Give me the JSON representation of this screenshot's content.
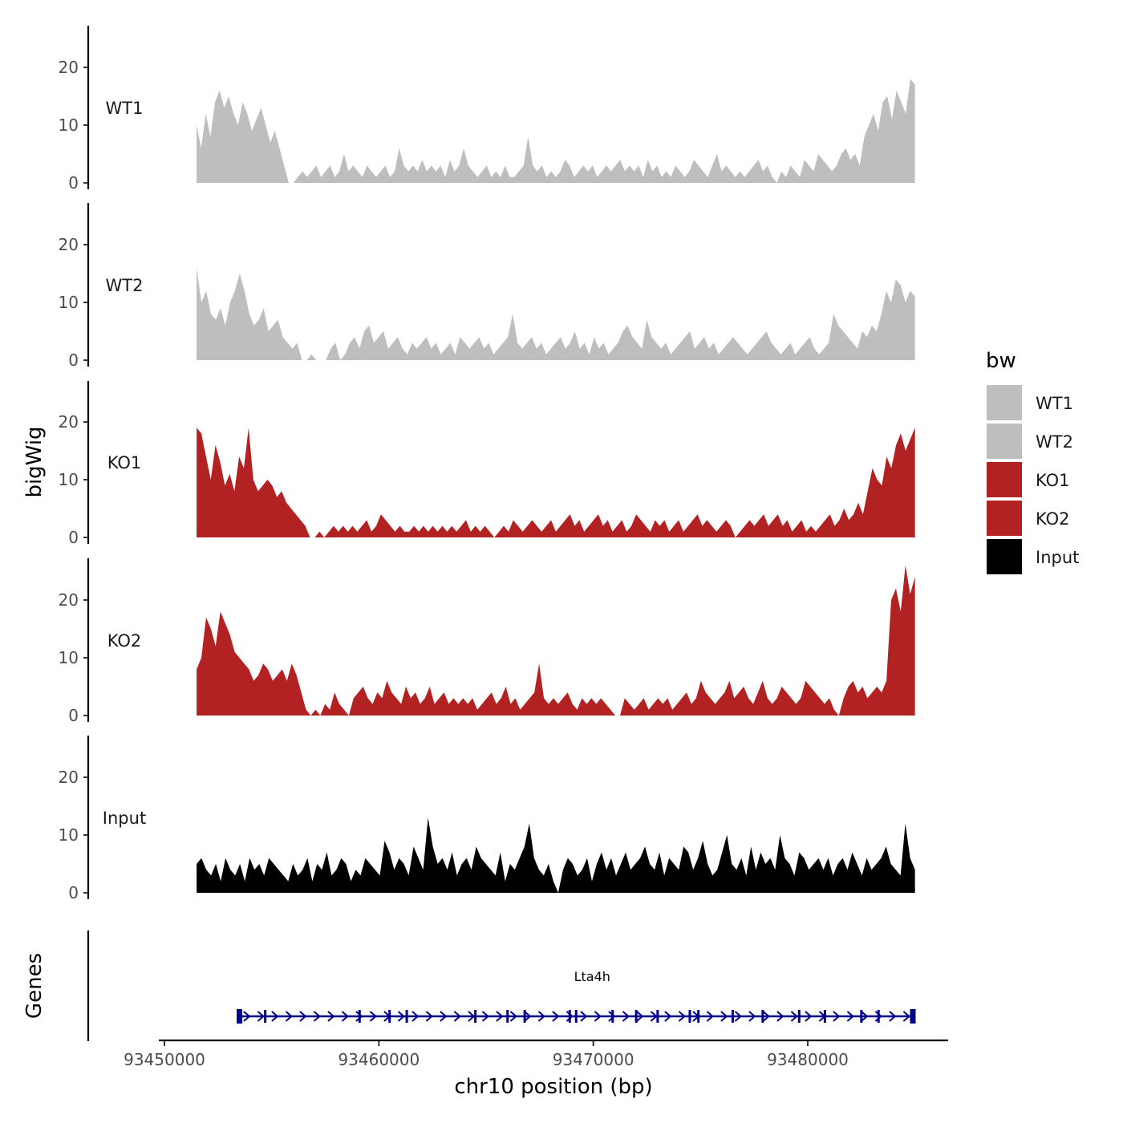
{
  "chart_data": {
    "type": "area",
    "title": "",
    "ylabel": "bigWig",
    "xlabel": "chr10 position (bp)",
    "genes_label": "Genes",
    "xlim": [
      93449800,
      93486600
    ],
    "x_ticks": [
      93450000,
      93460000,
      93470000,
      93480000
    ],
    "x_tick_labels": [
      "93450000",
      "93460000",
      "93470000",
      "93480000"
    ],
    "ylim": [
      0,
      27
    ],
    "y_ticks": [
      0,
      10,
      20
    ],
    "y_tick_labels": [
      "0",
      "10",
      "20"
    ],
    "x_start": 93451500,
    "x_end": 93485000,
    "legend": {
      "title": "bw",
      "position": "right",
      "items": [
        {
          "label": "WT1",
          "color": "#bebebe"
        },
        {
          "label": "WT2",
          "color": "#bebebe"
        },
        {
          "label": "KO1",
          "color": "#b22222"
        },
        {
          "label": "KO2",
          "color": "#b22222"
        },
        {
          "label": "Input",
          "color": "#000000"
        }
      ]
    },
    "series": [
      {
        "name": "WT1",
        "color": "#bebebe",
        "values": [
          10,
          6,
          12,
          8,
          14,
          16,
          13,
          15,
          12,
          10,
          14,
          12,
          9,
          11,
          13,
          10,
          7,
          9,
          6,
          3,
          0,
          0,
          1,
          2,
          1,
          2,
          3,
          1,
          2,
          3,
          1,
          2,
          5,
          2,
          3,
          2,
          1,
          3,
          2,
          1,
          2,
          3,
          1,
          2,
          6,
          3,
          2,
          3,
          2,
          4,
          2,
          3,
          2,
          3,
          1,
          4,
          2,
          3,
          6,
          3,
          2,
          1,
          2,
          3,
          1,
          2,
          1,
          3,
          1,
          1,
          2,
          3,
          8,
          3,
          2,
          3,
          1,
          2,
          1,
          2,
          4,
          3,
          1,
          2,
          3,
          2,
          3,
          1,
          2,
          3,
          2,
          3,
          4,
          2,
          3,
          2,
          3,
          1,
          4,
          2,
          3,
          1,
          2,
          1,
          3,
          2,
          1,
          2,
          4,
          3,
          2,
          1,
          3,
          5,
          2,
          3,
          2,
          1,
          2,
          1,
          2,
          3,
          4,
          2,
          3,
          1,
          0,
          2,
          1,
          3,
          2,
          1,
          4,
          3,
          2,
          5,
          4,
          3,
          2,
          3,
          5,
          6,
          4,
          5,
          3,
          8,
          10,
          12,
          9,
          14,
          15,
          11,
          16,
          14,
          12,
          18,
          17
        ]
      },
      {
        "name": "WT2",
        "color": "#bebebe",
        "values": [
          16,
          10,
          12,
          8,
          7,
          9,
          6,
          10,
          12,
          15,
          12,
          8,
          6,
          7,
          9,
          5,
          6,
          7,
          4,
          3,
          2,
          3,
          0,
          0,
          1,
          0,
          0,
          0,
          2,
          3,
          0,
          1,
          3,
          4,
          2,
          5,
          6,
          3,
          4,
          5,
          2,
          3,
          4,
          2,
          1,
          3,
          2,
          3,
          4,
          2,
          3,
          1,
          2,
          3,
          1,
          4,
          3,
          2,
          3,
          4,
          2,
          3,
          1,
          2,
          3,
          4,
          8,
          3,
          2,
          3,
          4,
          2,
          3,
          1,
          2,
          3,
          4,
          2,
          3,
          5,
          2,
          3,
          1,
          4,
          2,
          3,
          1,
          2,
          3,
          5,
          6,
          4,
          3,
          2,
          7,
          4,
          3,
          2,
          3,
          1,
          2,
          3,
          4,
          5,
          2,
          3,
          4,
          2,
          3,
          1,
          2,
          3,
          4,
          3,
          2,
          1,
          2,
          3,
          4,
          5,
          3,
          2,
          1,
          2,
          3,
          1,
          2,
          3,
          4,
          2,
          1,
          2,
          3,
          8,
          6,
          5,
          4,
          3,
          2,
          5,
          4,
          6,
          5,
          8,
          12,
          10,
          14,
          13,
          10,
          12,
          11
        ]
      },
      {
        "name": "KO1",
        "color": "#b22222",
        "values": [
          19,
          18,
          14,
          10,
          16,
          13,
          9,
          11,
          8,
          14,
          12,
          19,
          10,
          8,
          9,
          10,
          9,
          7,
          8,
          6,
          5,
          4,
          3,
          2,
          0,
          0,
          1,
          0,
          1,
          2,
          1,
          2,
          1,
          2,
          1,
          2,
          3,
          1,
          2,
          4,
          3,
          2,
          1,
          2,
          1,
          1,
          2,
          1,
          2,
          1,
          2,
          1,
          2,
          1,
          2,
          1,
          2,
          3,
          1,
          2,
          1,
          2,
          1,
          0,
          1,
          2,
          1,
          3,
          2,
          1,
          2,
          3,
          2,
          1,
          2,
          3,
          1,
          2,
          3,
          4,
          2,
          3,
          1,
          2,
          3,
          4,
          2,
          3,
          1,
          2,
          3,
          1,
          2,
          4,
          3,
          2,
          1,
          3,
          2,
          3,
          1,
          2,
          3,
          1,
          2,
          3,
          4,
          2,
          3,
          2,
          1,
          2,
          3,
          2,
          0,
          1,
          2,
          3,
          2,
          3,
          4,
          2,
          3,
          4,
          2,
          3,
          1,
          2,
          3,
          1,
          2,
          1,
          2,
          3,
          4,
          2,
          3,
          5,
          3,
          4,
          6,
          4,
          8,
          12,
          10,
          9,
          14,
          12,
          16,
          18,
          15,
          17,
          19
        ]
      },
      {
        "name": "KO2",
        "color": "#b22222",
        "values": [
          8,
          10,
          17,
          15,
          12,
          18,
          16,
          14,
          11,
          10,
          9,
          8,
          6,
          7,
          9,
          8,
          6,
          7,
          8,
          6,
          9,
          7,
          4,
          1,
          0,
          1,
          0,
          2,
          1,
          4,
          2,
          1,
          0,
          3,
          4,
          5,
          3,
          2,
          4,
          3,
          6,
          4,
          3,
          2,
          5,
          3,
          4,
          2,
          3,
          5,
          2,
          3,
          4,
          2,
          3,
          2,
          3,
          2,
          3,
          1,
          2,
          3,
          4,
          2,
          3,
          5,
          2,
          3,
          1,
          2,
          3,
          4,
          9,
          3,
          2,
          3,
          2,
          3,
          4,
          2,
          1,
          3,
          2,
          3,
          2,
          3,
          2,
          1,
          0,
          0,
          3,
          2,
          1,
          2,
          3,
          1,
          2,
          3,
          2,
          3,
          1,
          2,
          3,
          4,
          2,
          3,
          6,
          4,
          3,
          2,
          3,
          4,
          6,
          3,
          4,
          5,
          3,
          2,
          4,
          6,
          3,
          2,
          3,
          5,
          4,
          3,
          2,
          3,
          6,
          5,
          4,
          3,
          2,
          3,
          1,
          0,
          3,
          5,
          6,
          4,
          5,
          3,
          4,
          5,
          4,
          6,
          20,
          22,
          18,
          26,
          21,
          24
        ]
      },
      {
        "name": "Input",
        "color": "#000000",
        "values": [
          5,
          6,
          4,
          3,
          5,
          2,
          6,
          4,
          3,
          5,
          2,
          6,
          4,
          5,
          3,
          6,
          5,
          4,
          3,
          2,
          5,
          3,
          4,
          6,
          2,
          5,
          4,
          7,
          3,
          4,
          6,
          5,
          2,
          4,
          3,
          6,
          5,
          4,
          3,
          9,
          7,
          4,
          6,
          5,
          3,
          8,
          6,
          4,
          13,
          8,
          5,
          6,
          4,
          7,
          3,
          5,
          6,
          4,
          8,
          6,
          5,
          4,
          3,
          7,
          2,
          5,
          4,
          6,
          8,
          12,
          6,
          4,
          3,
          5,
          2,
          0,
          4,
          6,
          5,
          3,
          4,
          6,
          2,
          5,
          7,
          4,
          6,
          3,
          5,
          7,
          4,
          5,
          6,
          8,
          5,
          4,
          7,
          3,
          6,
          5,
          4,
          8,
          7,
          4,
          6,
          9,
          5,
          3,
          4,
          7,
          10,
          5,
          4,
          6,
          3,
          8,
          4,
          7,
          5,
          6,
          4,
          10,
          6,
          5,
          3,
          7,
          6,
          4,
          5,
          6,
          4,
          6,
          3,
          5,
          6,
          4,
          7,
          5,
          3,
          6,
          4,
          5,
          6,
          8,
          5,
          4,
          3,
          12,
          6,
          4
        ]
      }
    ],
    "gene": {
      "name": "Lta4h",
      "start": 93453400,
      "end": 93485000,
      "strand": "+",
      "color": "#00008b",
      "exons": [
        93453500,
        93454700,
        93459100,
        93460500,
        93461300,
        93464500,
        93466000,
        93466800,
        93468900,
        93469200,
        93470900,
        93472000,
        93473000,
        93474500,
        93474900,
        93476500,
        93477900,
        93479600,
        93480800,
        93482500,
        93483300,
        93484900
      ]
    }
  }
}
